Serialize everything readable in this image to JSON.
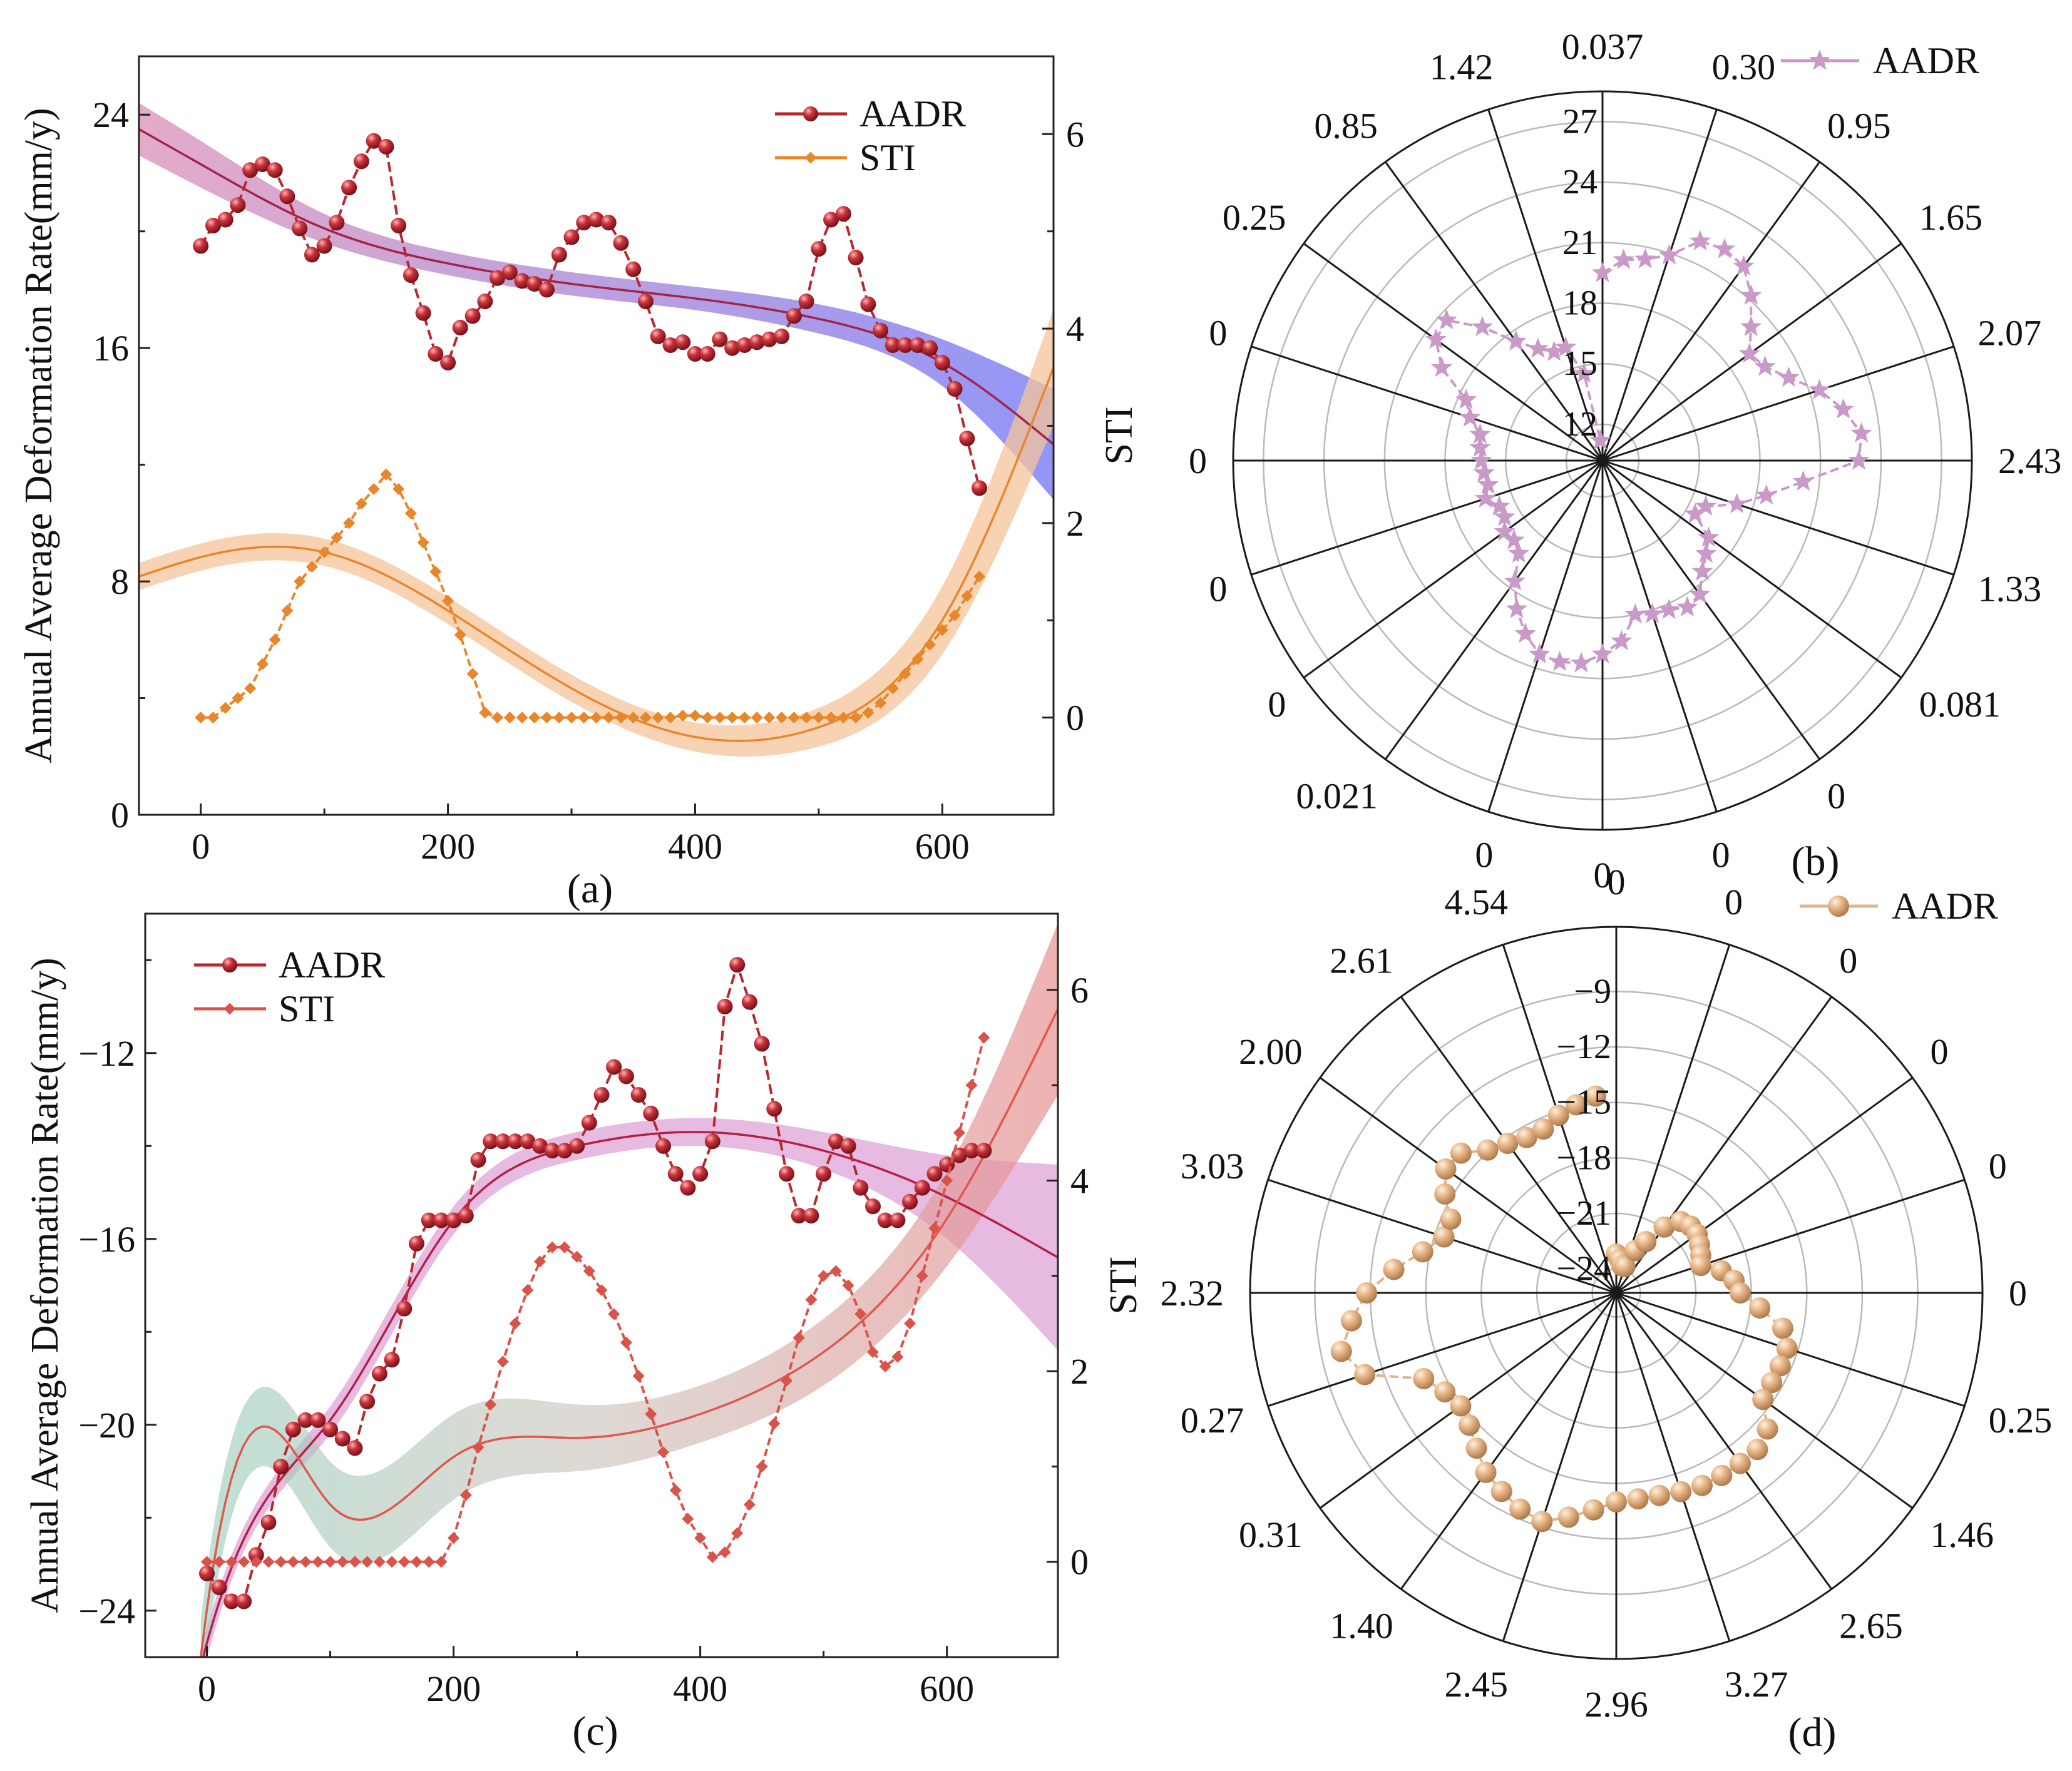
{
  "chart_data": [
    {
      "panel": "a",
      "panel_label": "(a)",
      "type": "line",
      "ylabel": "Annual Average Deformation Rate(mm/y)",
      "y2label": "STI",
      "xlim": [
        -50,
        690
      ],
      "ylim": [
        0,
        26
      ],
      "y2lim": [
        -1,
        6.8
      ],
      "xticks": [
        0,
        200,
        400,
        600
      ],
      "yticks": [
        0,
        8,
        16,
        24
      ],
      "y2ticks": [
        0,
        2,
        4,
        6
      ],
      "legend_position": "top-right",
      "colors": {
        "aadr": "#b8262e",
        "sti": "#e8862a",
        "band_aadr_start": "#d98fb8",
        "band_aadr_end": "#7f7cf2",
        "band_sti": "#f6c49a"
      },
      "series": [
        {
          "name": "AADR",
          "axis": "left",
          "marker": "sphere",
          "x": [
            0,
            10,
            20,
            30,
            40,
            50,
            60,
            70,
            80,
            90,
            100,
            110,
            120,
            130,
            140,
            150,
            160,
            170,
            180,
            190,
            200,
            210,
            220,
            230,
            240,
            250,
            260,
            270,
            280,
            290,
            300,
            310,
            320,
            330,
            340,
            350,
            360,
            370,
            380,
            390,
            400,
            410,
            420,
            430,
            440,
            450,
            460,
            470,
            480,
            490,
            500,
            510,
            520,
            530,
            540,
            550,
            560,
            570,
            580,
            590,
            600,
            610,
            620,
            630
          ],
          "y": [
            19.5,
            20.2,
            20.4,
            20.9,
            22.1,
            22.3,
            22.1,
            21.2,
            20.1,
            19.2,
            19.5,
            20.3,
            21.5,
            22.4,
            23.1,
            22.9,
            20.2,
            18.5,
            17.2,
            15.8,
            15.5,
            16.7,
            17.1,
            17.6,
            18.4,
            18.6,
            18.3,
            18.2,
            18.0,
            19.2,
            19.8,
            20.3,
            20.4,
            20.3,
            19.6,
            18.7,
            17.6,
            16.4,
            16.1,
            16.2,
            15.8,
            15.8,
            16.3,
            16.0,
            16.1,
            16.2,
            16.3,
            16.4,
            17.1,
            17.6,
            19.4,
            20.4,
            20.6,
            19.1,
            17.5,
            16.6,
            16.1,
            16.1,
            16.1,
            16.0,
            15.5,
            14.6,
            12.9,
            11.2
          ]
        },
        {
          "name": "STI",
          "axis": "right",
          "marker": "diamond",
          "x": [
            0,
            10,
            20,
            30,
            40,
            50,
            60,
            70,
            80,
            90,
            100,
            110,
            120,
            130,
            140,
            150,
            160,
            170,
            180,
            190,
            200,
            210,
            220,
            230,
            240,
            250,
            260,
            270,
            280,
            290,
            300,
            310,
            320,
            330,
            340,
            350,
            360,
            370,
            380,
            390,
            400,
            410,
            420,
            430,
            440,
            450,
            460,
            470,
            480,
            490,
            500,
            510,
            520,
            530,
            540,
            550,
            560,
            570,
            580,
            590,
            600,
            610,
            620,
            630
          ],
          "y": [
            0.0,
            0.0,
            0.1,
            0.2,
            0.3,
            0.55,
            0.8,
            1.1,
            1.4,
            1.55,
            1.7,
            1.85,
            2.0,
            2.2,
            2.35,
            2.5,
            2.35,
            2.1,
            1.8,
            1.5,
            1.2,
            0.85,
            0.45,
            0.05,
            0.0,
            0.0,
            0.0,
            0.0,
            0.0,
            0.0,
            0.0,
            0.0,
            0.0,
            0.0,
            0.0,
            0.0,
            0.0,
            0.0,
            0.0,
            0.02,
            0.02,
            0.0,
            0.0,
            0.0,
            0.0,
            0.0,
            0.0,
            0.0,
            0.0,
            0.0,
            0.0,
            0.0,
            0.0,
            0.0,
            0.05,
            0.15,
            0.3,
            0.45,
            0.6,
            0.75,
            0.9,
            1.05,
            1.25,
            1.45
          ]
        }
      ],
      "fits": [
        {
          "of": "AADR",
          "axis": "left",
          "x": [
            -50,
            0,
            100,
            200,
            300,
            400,
            500,
            600,
            690
          ],
          "y": [
            23.5,
            22.3,
            20.1,
            18.9,
            18.2,
            17.7,
            17.0,
            15.5,
            12.7
          ],
          "band": [
            0.9,
            0.8,
            0.5,
            0.4,
            0.4,
            0.4,
            0.5,
            0.8,
            1.9
          ]
        },
        {
          "of": "STI",
          "axis": "right",
          "x": [
            -50,
            0,
            100,
            200,
            300,
            400,
            500,
            600,
            690
          ],
          "y": [
            1.45,
            1.65,
            1.7,
            1.1,
            0.3,
            -0.2,
            -0.1,
            1.0,
            3.6
          ],
          "band": [
            0.14,
            0.14,
            0.14,
            0.14,
            0.14,
            0.15,
            0.2,
            0.35,
            0.6
          ]
        }
      ]
    },
    {
      "panel": "b",
      "panel_label": "(b)",
      "type": "polar",
      "series_name": "AADR",
      "marker": "star",
      "color": "#c99ac8",
      "rlim": [
        10.2,
        28.5
      ],
      "rticks": [
        12,
        15,
        18,
        21,
        24,
        27
      ],
      "spoke_labels_cw_from_top": [
        "0.037",
        "0.30",
        "0.95",
        "1.65",
        "2.07",
        "2.43",
        "1.33",
        "0.081",
        "0",
        "0",
        "0",
        "0",
        "0.021",
        "0",
        "0",
        "0",
        "0",
        "0.25",
        "0.85",
        "1.42"
      ],
      "theta_deg": [
        0,
        6,
        12,
        18,
        24,
        30,
        36,
        42,
        48,
        54,
        60,
        66,
        72,
        78,
        84,
        90,
        96,
        102,
        108,
        114,
        120,
        126,
        132,
        138,
        144,
        150,
        156,
        162,
        168,
        174,
        180,
        186,
        192,
        198,
        204,
        210,
        216,
        222,
        228,
        234,
        240,
        246,
        252,
        258,
        264,
        270,
        276,
        282,
        288,
        294,
        300,
        306,
        312,
        318,
        324,
        330,
        336,
        342,
        348,
        354
      ],
      "r": [
        19.5,
        20.2,
        20.4,
        20.9,
        22.1,
        22.3,
        22.1,
        21.2,
        20.1,
        19.2,
        19.5,
        20.3,
        21.5,
        22.4,
        23.1,
        22.9,
        20.2,
        18.5,
        17.2,
        15.8,
        15.5,
        16.7,
        17.1,
        17.6,
        18.4,
        18.6,
        18.3,
        18.2,
        18.0,
        19.2,
        19.8,
        20.3,
        20.4,
        20.3,
        19.6,
        18.7,
        17.6,
        16.4,
        16.1,
        16.2,
        15.8,
        15.8,
        16.3,
        16.0,
        16.1,
        16.2,
        16.3,
        16.4,
        17.1,
        17.6,
        19.4,
        20.4,
        20.6,
        19.1,
        17.5,
        16.6,
        16.1,
        16.1,
        14.6,
        11.2
      ]
    },
    {
      "panel": "c",
      "panel_label": "(c)",
      "type": "line",
      "ylabel": "Annual Average Deformation Rate(mm/y)",
      "y2label": "STI",
      "xlim": [
        -50,
        690
      ],
      "ylim": [
        -25,
        -9
      ],
      "y2lim": [
        -1,
        6.8
      ],
      "xticks": [
        0,
        200,
        400,
        600
      ],
      "yticks": [
        -24,
        -20,
        -16,
        -12
      ],
      "y2ticks": [
        0,
        2,
        4,
        6
      ],
      "legend_position": "top-left",
      "colors": {
        "aadr": "#b8262e",
        "sti": "#d9534a",
        "band_aadr": "#d98fcc",
        "band_sti_start": "#a9d3c2",
        "band_sti_end": "#e8a0a0"
      },
      "series": [
        {
          "name": "AADR",
          "axis": "left",
          "marker": "sphere",
          "x": [
            0,
            10,
            20,
            30,
            40,
            50,
            60,
            70,
            80,
            90,
            100,
            110,
            120,
            130,
            140,
            150,
            160,
            170,
            180,
            190,
            200,
            210,
            220,
            230,
            240,
            250,
            260,
            270,
            280,
            290,
            300,
            310,
            320,
            330,
            340,
            350,
            360,
            370,
            380,
            390,
            400,
            410,
            420,
            430,
            440,
            450,
            460,
            470,
            480,
            490,
            500,
            510,
            520,
            530,
            540,
            550,
            560,
            570,
            580,
            590,
            600,
            610,
            620,
            630
          ],
          "y": [
            -23.2,
            -23.5,
            -23.8,
            -23.8,
            -22.8,
            -22.1,
            -20.9,
            -20.1,
            -19.9,
            -19.9,
            -20.1,
            -20.3,
            -20.5,
            -19.5,
            -18.9,
            -18.6,
            -17.5,
            -16.1,
            -15.6,
            -15.6,
            -15.6,
            -15.5,
            -14.3,
            -13.9,
            -13.9,
            -13.9,
            -13.9,
            -14.0,
            -14.1,
            -14.1,
            -14.0,
            -13.5,
            -12.9,
            -12.3,
            -12.5,
            -12.9,
            -13.3,
            -14.0,
            -14.6,
            -14.9,
            -14.6,
            -13.9,
            -11.0,
            -10.1,
            -10.9,
            -11.8,
            -13.2,
            -14.6,
            -15.5,
            -15.5,
            -14.6,
            -13.9,
            -14.0,
            -14.9,
            -15.3,
            -15.6,
            -15.6,
            -15.2,
            -14.9,
            -14.6,
            -14.4,
            -14.2,
            -14.1,
            -14.1
          ]
        },
        {
          "name": "STI",
          "axis": "right",
          "marker": "diamond",
          "x": [
            0,
            10,
            20,
            30,
            40,
            50,
            60,
            70,
            80,
            90,
            100,
            110,
            120,
            130,
            140,
            150,
            160,
            170,
            180,
            190,
            200,
            210,
            220,
            230,
            240,
            250,
            260,
            270,
            280,
            290,
            300,
            310,
            320,
            330,
            340,
            350,
            360,
            370,
            380,
            390,
            400,
            410,
            420,
            430,
            440,
            450,
            460,
            470,
            480,
            490,
            500,
            510,
            520,
            530,
            540,
            550,
            560,
            570,
            580,
            590,
            600,
            610,
            620,
            630
          ],
          "y": [
            0,
            0,
            0,
            0,
            0,
            0,
            0,
            0,
            0,
            0,
            0,
            0,
            0,
            0,
            0,
            0,
            0,
            0,
            0,
            0,
            0.25,
            0.7,
            1.2,
            1.65,
            2.1,
            2.5,
            2.85,
            3.15,
            3.3,
            3.3,
            3.2,
            3.05,
            2.85,
            2.6,
            2.3,
            1.95,
            1.55,
            1.15,
            0.75,
            0.45,
            0.25,
            0.05,
            0.1,
            0.3,
            0.6,
            1.0,
            1.45,
            1.9,
            2.35,
            2.75,
            3.0,
            3.05,
            2.9,
            2.6,
            2.2,
            2.05,
            2.15,
            2.5,
            3.0,
            3.5,
            4.0,
            4.5,
            5.0,
            5.5
          ]
        }
      ],
      "fits": [
        {
          "of": "AADR",
          "axis": "left",
          "x": [
            -5,
            0,
            100,
            200,
            300,
            400,
            500,
            600,
            690
          ],
          "y": [
            -25.2,
            -24.7,
            -19.9,
            -15.6,
            -14.0,
            -13.7,
            -14.1,
            -15.1,
            -16.4
          ],
          "band": [
            0.35,
            0.33,
            0.3,
            0.3,
            0.3,
            0.3,
            0.4,
            0.9,
            2.0
          ]
        },
        {
          "of": "STI",
          "axis": "right",
          "x": [
            -5,
            0,
            100,
            200,
            300,
            400,
            500,
            600,
            690
          ],
          "y": [
            -1.0,
            -0.5,
            0.6,
            1.1,
            1.3,
            1.55,
            2.2,
            3.6,
            5.8
          ],
          "band": [
            0.4,
            0.4,
            0.45,
            0.45,
            0.35,
            0.3,
            0.35,
            0.5,
            0.9
          ]
        }
      ]
    },
    {
      "panel": "d",
      "panel_label": "(d)",
      "type": "polar",
      "series_name": "AADR",
      "marker": "sphere",
      "color": "#e0b58a",
      "rlim": [
        -25.3,
        -5.5
      ],
      "rticks": [
        -24,
        -21,
        -18,
        -15,
        -12,
        -9
      ],
      "spoke_labels_cw_from_top": [
        "0",
        "0",
        "0",
        "0",
        "0",
        "0",
        "0.25",
        "1.46",
        "2.65",
        "3.27",
        "2.96",
        "2.45",
        "1.40",
        "0.31",
        "0.27",
        "2.32",
        "3.03",
        "2.00",
        "2.61",
        "4.54"
      ],
      "theta_deg": [
        0,
        6,
        12,
        18,
        24,
        30,
        36,
        42,
        48,
        54,
        60,
        66,
        72,
        78,
        84,
        90,
        96,
        102,
        108,
        114,
        120,
        126,
        132,
        138,
        144,
        150,
        156,
        162,
        168,
        174,
        180,
        186,
        192,
        198,
        204,
        210,
        216,
        222,
        228,
        234,
        240,
        246,
        252,
        258,
        264,
        270,
        276,
        282,
        288,
        294,
        300,
        306,
        312,
        318,
        324,
        330,
        336,
        342,
        348,
        354
      ],
      "r": [
        -23.2,
        -23.5,
        -23.8,
        -23.8,
        -22.8,
        -22.1,
        -20.9,
        -20.1,
        -19.9,
        -19.9,
        -20.1,
        -20.3,
        -20.5,
        -19.5,
        -18.9,
        -18.6,
        -17.5,
        -16.1,
        -15.6,
        -15.6,
        -15.6,
        -15.5,
        -14.3,
        -13.9,
        -13.9,
        -13.9,
        -13.9,
        -14.0,
        -14.1,
        -14.1,
        -14.0,
        -13.5,
        -12.9,
        -12.3,
        -12.5,
        -12.9,
        -13.3,
        -14.0,
        -14.6,
        -14.9,
        -14.6,
        -13.9,
        -11.0,
        -10.1,
        -10.9,
        -11.8,
        -13.2,
        -14.6,
        -15.5,
        -15.5,
        -14.6,
        -13.9,
        -14.0,
        -14.9,
        -15.3,
        -15.6,
        -15.6,
        -15.2,
        -14.9,
        -14.6
      ]
    }
  ]
}
